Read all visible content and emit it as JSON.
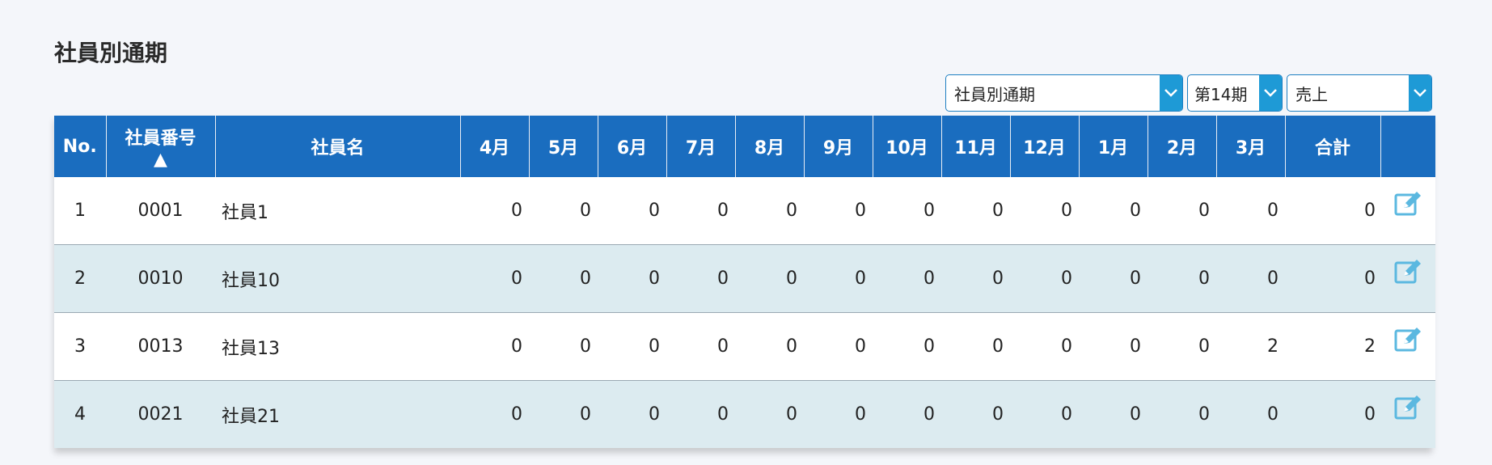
{
  "page": {
    "title": "社員別通期"
  },
  "filters": {
    "report": "社員別通期",
    "period": "第14期",
    "metric": "売上",
    "arrow_icon": "chevron-down-icon",
    "accent_color": "#1e9ad6"
  },
  "table": {
    "header_color": "#1a6dbf",
    "headers": {
      "no": "No.",
      "code": "社員番号",
      "sort_indicator": "▲",
      "name": "社員名",
      "months": [
        "4月",
        "5月",
        "6月",
        "7月",
        "8月",
        "9月",
        "10月",
        "11月",
        "12月",
        "1月",
        "2月",
        "3月"
      ],
      "total": "合計"
    },
    "rows": [
      {
        "no": "1",
        "code": "0001",
        "name": "社員1",
        "values": [
          "0",
          "0",
          "0",
          "0",
          "0",
          "0",
          "0",
          "0",
          "0",
          "0",
          "0",
          "0"
        ],
        "total": "0"
      },
      {
        "no": "2",
        "code": "0010",
        "name": "社員10",
        "values": [
          "0",
          "0",
          "0",
          "0",
          "0",
          "0",
          "0",
          "0",
          "0",
          "0",
          "0",
          "0"
        ],
        "total": "0"
      },
      {
        "no": "3",
        "code": "0013",
        "name": "社員13",
        "values": [
          "0",
          "0",
          "0",
          "0",
          "0",
          "0",
          "0",
          "0",
          "0",
          "0",
          "0",
          "2"
        ],
        "total": "2"
      },
      {
        "no": "4",
        "code": "0021",
        "name": "社員21",
        "values": [
          "0",
          "0",
          "0",
          "0",
          "0",
          "0",
          "0",
          "0",
          "0",
          "0",
          "0",
          "0"
        ],
        "total": "0"
      }
    ],
    "edit_icon": "edit-icon"
  }
}
